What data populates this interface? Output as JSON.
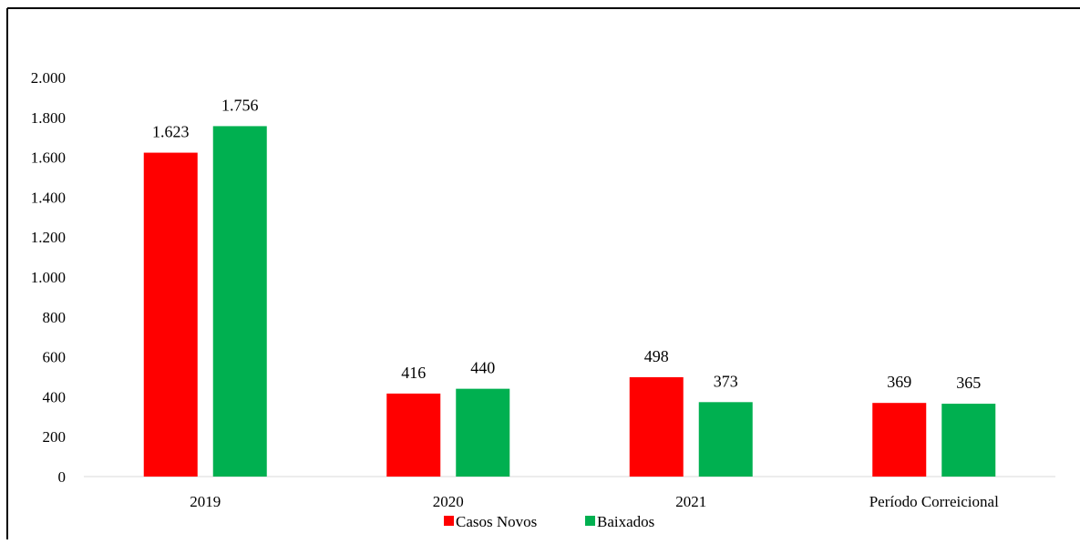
{
  "chart_data": {
    "type": "bar",
    "categories": [
      "2019",
      "2020",
      "2021",
      "Período Correicional"
    ],
    "series": [
      {
        "name": "Casos Novos",
        "color": "#ff0000",
        "values": [
          1623,
          416,
          498,
          369
        ],
        "labels": [
          "1.623",
          "416",
          "498",
          "369"
        ]
      },
      {
        "name": "Baixados",
        "color": "#00b050",
        "values": [
          1756,
          440,
          373,
          365
        ],
        "labels": [
          "1.756",
          "440",
          "373",
          "365"
        ]
      }
    ],
    "ylim": [
      0,
      2000
    ],
    "yticks": [
      0,
      200,
      400,
      600,
      800,
      1000,
      1200,
      1400,
      1600,
      1800,
      2000
    ],
    "ytick_labels": [
      "0",
      "200",
      "400",
      "600",
      "800",
      "1.000",
      "1.200",
      "1.400",
      "1.600",
      "1.800",
      "2.000"
    ],
    "grid": false,
    "legend": "bottom"
  }
}
